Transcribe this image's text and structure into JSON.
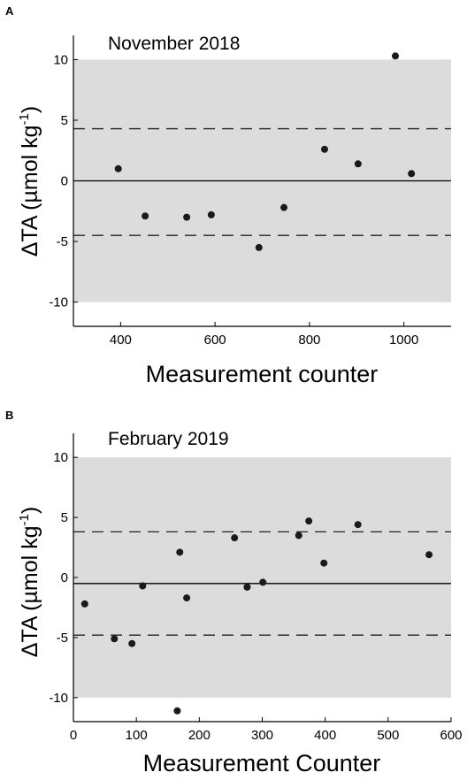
{
  "chart_data": [
    {
      "type": "scatter",
      "panel_label": "A",
      "annotation": "November 2018",
      "xlabel": "Measurement counter",
      "ylabel": "ΔTA (µmol kg⁻¹)",
      "ylabel_main": "ΔTA (µmol kg",
      "ylabel_sup": "-1",
      "ylabel_close": ")",
      "xlim": [
        300,
        1100
      ],
      "ylim": [
        -12,
        12
      ],
      "xticks": [
        400,
        600,
        800,
        1000
      ],
      "yticks": [
        10,
        5,
        0,
        -5,
        -10
      ],
      "shaded_band": [
        -10,
        10
      ],
      "solid_line": 0,
      "dashed_lines": [
        4.3,
        -4.5
      ],
      "grid": false,
      "colors": {
        "band": "#dcdcdc",
        "points": "#1a1a1a"
      },
      "points": [
        {
          "x": 395,
          "y": 1.0
        },
        {
          "x": 452,
          "y": -2.9
        },
        {
          "x": 540,
          "y": -3.0
        },
        {
          "x": 592,
          "y": -2.8
        },
        {
          "x": 693,
          "y": -5.5
        },
        {
          "x": 746,
          "y": -2.2
        },
        {
          "x": 832,
          "y": 2.6
        },
        {
          "x": 903,
          "y": 1.4
        },
        {
          "x": 982,
          "y": 10.3
        },
        {
          "x": 1016,
          "y": 0.6
        }
      ]
    },
    {
      "type": "scatter",
      "panel_label": "B",
      "annotation": "February 2019",
      "xlabel": "Measurement Counter",
      "ylabel": "ΔTA (µmol kg⁻¹)",
      "ylabel_main": "ΔTA (µmol kg",
      "ylabel_sup": "-1",
      "ylabel_close": ")",
      "xlim": [
        0,
        600
      ],
      "ylim": [
        -12,
        12
      ],
      "xticks": [
        0,
        100,
        200,
        300,
        400,
        500,
        600
      ],
      "yticks": [
        10,
        5,
        0,
        -5,
        -10
      ],
      "shaded_band": [
        -10,
        10
      ],
      "solid_line": -0.5,
      "dashed_lines": [
        3.8,
        -4.8
      ],
      "grid": false,
      "colors": {
        "band": "#dcdcdc",
        "points": "#1a1a1a"
      },
      "points": [
        {
          "x": 18,
          "y": -2.2
        },
        {
          "x": 65,
          "y": -5.1
        },
        {
          "x": 93,
          "y": -5.5
        },
        {
          "x": 110,
          "y": -0.7
        },
        {
          "x": 165,
          "y": -11.1
        },
        {
          "x": 169,
          "y": 2.1
        },
        {
          "x": 180,
          "y": -1.7
        },
        {
          "x": 256,
          "y": 3.3
        },
        {
          "x": 276,
          "y": -0.8
        },
        {
          "x": 301,
          "y": -0.4
        },
        {
          "x": 358,
          "y": 3.5
        },
        {
          "x": 374,
          "y": 4.7
        },
        {
          "x": 398,
          "y": 1.2
        },
        {
          "x": 452,
          "y": 4.4
        },
        {
          "x": 565,
          "y": 1.9
        }
      ]
    }
  ]
}
